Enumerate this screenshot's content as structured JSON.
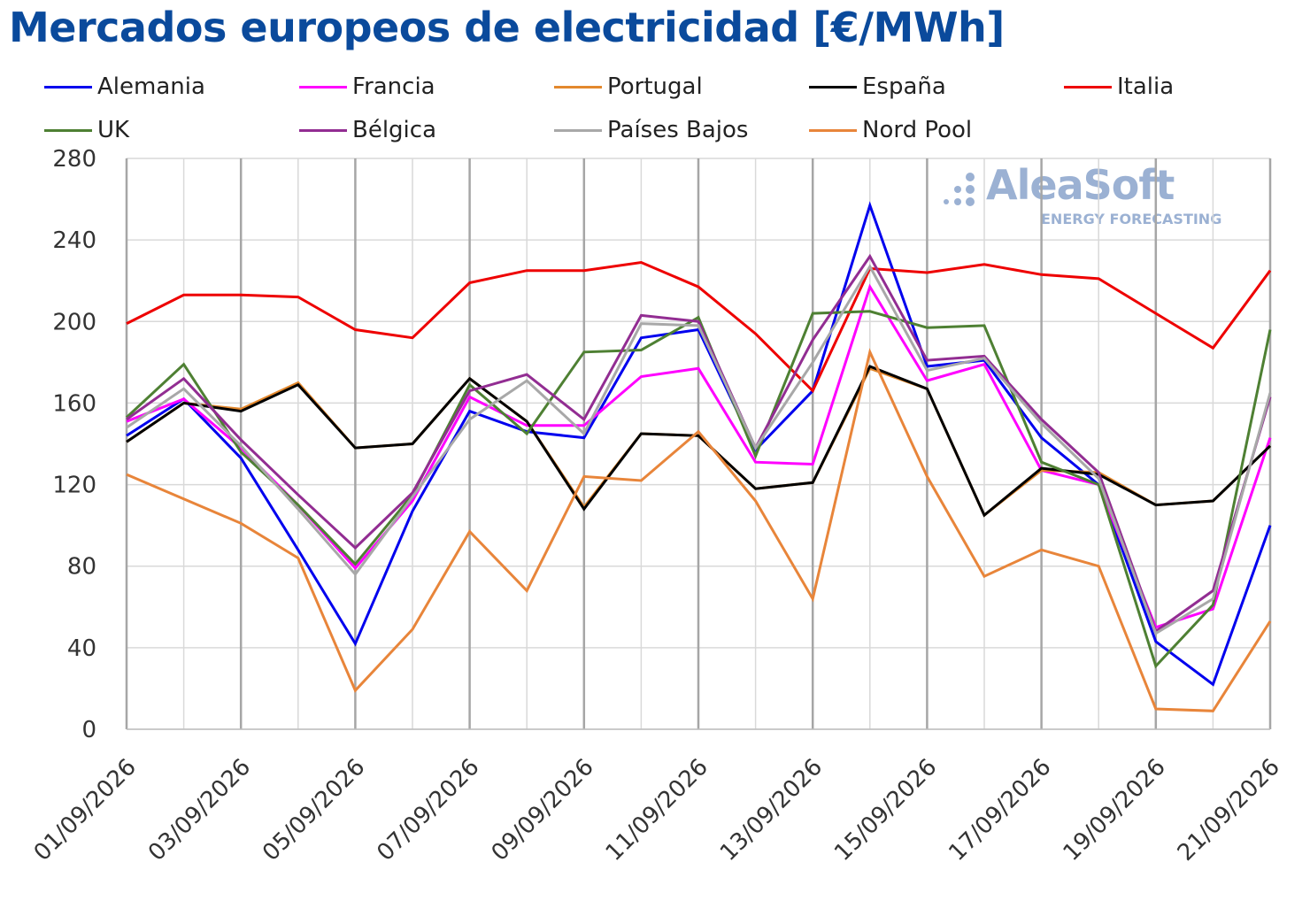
{
  "title": "Mercados europeos de electricidad [€/MWh]",
  "logo": {
    "name": "AleaSoft",
    "subtitle": "ENERGY FORECASTING",
    "icon": "dots-logo-icon"
  },
  "chart_data": {
    "type": "line",
    "title": "Mercados europeos de electricidad [€/MWh]",
    "xlabel": "",
    "ylabel": "",
    "ylim": [
      0,
      280
    ],
    "yticks": [
      "0",
      "40",
      "80",
      "120",
      "160",
      "200",
      "240",
      "280"
    ],
    "grid": true,
    "legend_position": "top",
    "x": [
      "01/09/2026",
      "02/09/2026",
      "03/09/2026",
      "04/09/2026",
      "05/09/2026",
      "06/09/2026",
      "07/09/2026",
      "08/09/2026",
      "09/09/2026",
      "10/09/2026",
      "11/09/2026",
      "12/09/2026",
      "13/09/2026",
      "14/09/2026",
      "15/09/2026",
      "16/09/2026",
      "17/09/2026",
      "18/09/2026",
      "19/09/2026",
      "20/09/2026",
      "21/09/2026"
    ],
    "xtick_labels": [
      "01/09/2026",
      "03/09/2026",
      "05/09/2026",
      "07/09/2026",
      "09/09/2026",
      "11/09/2026",
      "13/09/2026",
      "15/09/2026",
      "17/09/2026",
      "19/09/2026",
      "21/09/2026"
    ],
    "series": [
      {
        "name": "Alemania",
        "color": "#0000ee",
        "values": [
          144,
          162,
          133,
          88,
          42,
          107,
          156,
          146,
          143,
          192,
          196,
          137,
          166,
          257,
          178,
          181,
          143,
          120,
          43,
          22,
          100
        ]
      },
      {
        "name": "Francia",
        "color": "#ff00ff",
        "values": [
          151,
          162,
          138,
          110,
          79,
          112,
          163,
          149,
          149,
          173,
          177,
          131,
          130,
          217,
          171,
          179,
          127,
          120,
          50,
          59,
          143
        ]
      },
      {
        "name": "Portugal",
        "color": "#e3882d",
        "values": [
          141,
          160,
          157,
          170,
          138,
          140,
          172,
          151,
          109,
          145,
          144,
          118,
          121,
          177,
          167,
          105,
          127,
          126,
          110,
          112,
          139
        ]
      },
      {
        "name": "España",
        "color": "#000000",
        "values": [
          141,
          160,
          156,
          169,
          138,
          140,
          172,
          151,
          108,
          145,
          144,
          118,
          121,
          178,
          167,
          105,
          128,
          125,
          110,
          112,
          139
        ]
      },
      {
        "name": "Italia",
        "color": "#ee0000",
        "values": [
          199,
          213,
          213,
          212,
          196,
          192,
          219,
          225,
          225,
          229,
          217,
          194,
          166,
          226,
          224,
          228,
          223,
          221,
          204,
          187,
          225
        ]
      },
      {
        "name": "UK",
        "color": "#4e8033",
        "values": [
          153,
          179,
          136,
          110,
          81,
          115,
          169,
          145,
          185,
          186,
          202,
          134,
          204,
          205,
          197,
          198,
          131,
          120,
          31,
          61,
          196
        ]
      },
      {
        "name": "Bélgica",
        "color": "#922d92",
        "values": [
          152,
          172,
          142,
          115,
          89,
          116,
          166,
          174,
          152,
          203,
          200,
          138,
          191,
          232,
          181,
          183,
          152,
          126,
          48,
          68,
          163
        ]
      },
      {
        "name": "Países Bajos",
        "color": "#a8a8a8",
        "values": [
          148,
          167,
          139,
          108,
          76,
          114,
          152,
          171,
          145,
          199,
          198,
          138,
          180,
          227,
          176,
          182,
          150,
          123,
          47,
          64,
          165
        ]
      },
      {
        "name": "Nord Pool",
        "color": "#e8853a",
        "values": [
          125,
          113,
          101,
          84,
          19,
          49,
          97,
          68,
          124,
          122,
          146,
          112,
          64,
          185,
          124,
          75,
          88,
          80,
          10,
          9,
          53
        ]
      }
    ]
  }
}
